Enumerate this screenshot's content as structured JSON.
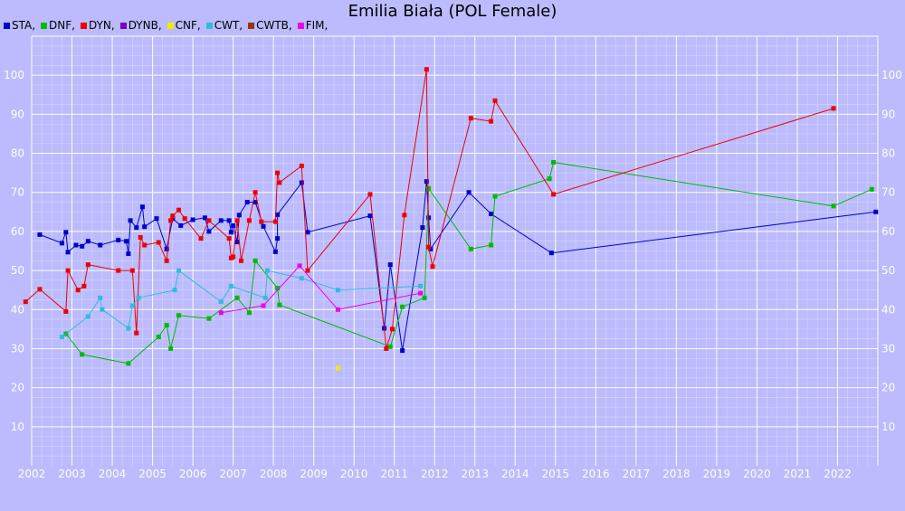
{
  "chart_data": {
    "type": "line",
    "title": "Emilia Biała (POL Female)",
    "xlim": [
      2002,
      2023
    ],
    "ylim": [
      0,
      110
    ],
    "x_ticks": [
      "2002",
      "2003",
      "2004",
      "2005",
      "2006",
      "2007",
      "2008",
      "2009",
      "2010",
      "2011",
      "2012",
      "2013",
      "2014",
      "2015",
      "2016",
      "2017",
      "2018",
      "2019",
      "2020",
      "2021",
      "2022"
    ],
    "y_ticks": [
      "10",
      "20",
      "30",
      "40",
      "50",
      "60",
      "70",
      "80",
      "90",
      "100"
    ],
    "grid": true,
    "legend_position": "top-left",
    "background": "#bbbbfd",
    "series": [
      {
        "name": "STA,",
        "color": "#0000cc",
        "points": [
          [
            2002.2,
            59.2
          ],
          [
            2002.75,
            57
          ],
          [
            2002.85,
            59.8
          ],
          [
            2002.9,
            54.7
          ],
          [
            2003.1,
            56.5
          ],
          [
            2003.25,
            56.2
          ],
          [
            2003.4,
            57.5
          ],
          [
            2003.7,
            56.5
          ],
          [
            2004.15,
            57.8
          ],
          [
            2004.35,
            57.5
          ],
          [
            2004.4,
            54.3
          ],
          [
            2004.45,
            62.8
          ],
          [
            2004.6,
            61
          ],
          [
            2004.75,
            66.3
          ],
          [
            2004.8,
            61.2
          ],
          [
            2005.1,
            63.3
          ],
          [
            2005.35,
            55.5
          ],
          [
            2005.5,
            63.3
          ],
          [
            2005.7,
            61.5
          ],
          [
            2006.0,
            63
          ],
          [
            2006.3,
            63.5
          ],
          [
            2006.4,
            60
          ],
          [
            2006.7,
            62.8
          ],
          [
            2006.9,
            62.8
          ],
          [
            2006.95,
            59.8
          ],
          [
            2007.0,
            61.5
          ],
          [
            2007.1,
            57.3
          ],
          [
            2007.15,
            64.2
          ],
          [
            2007.35,
            67.5
          ],
          [
            2007.55,
            67.5
          ],
          [
            2007.75,
            61.3
          ],
          [
            2008.05,
            54.8
          ],
          [
            2008.1,
            58.2
          ],
          [
            2008.1,
            64.3
          ],
          [
            2008.7,
            72.5
          ],
          [
            2008.85,
            59.8
          ],
          [
            2010.4,
            64
          ],
          [
            2010.75,
            35.2
          ],
          [
            2010.9,
            51.5
          ],
          [
            2011.2,
            29.5
          ],
          [
            2011.7,
            61
          ],
          [
            2011.8,
            72.8
          ],
          [
            2011.85,
            63.5
          ],
          [
            2011.9,
            55.5
          ],
          [
            2012.85,
            70
          ],
          [
            2013.4,
            64.5
          ],
          [
            2014.9,
            54.5
          ],
          [
            2022.95,
            65
          ]
        ]
      },
      {
        "name": "DNF,",
        "color": "#00bb00",
        "points": [
          [
            2002.85,
            33.8
          ],
          [
            2003.25,
            28.5
          ],
          [
            2004.4,
            26.2
          ],
          [
            2005.15,
            33
          ],
          [
            2005.35,
            36
          ],
          [
            2005.45,
            30
          ],
          [
            2005.65,
            38.5
          ],
          [
            2006.4,
            37.7
          ],
          [
            2007.1,
            43
          ],
          [
            2007.4,
            39.2
          ],
          [
            2007.55,
            52.5
          ],
          [
            2008.1,
            45.5
          ],
          [
            2008.15,
            41.2
          ],
          [
            2010.9,
            30.5
          ],
          [
            2011.2,
            40.7
          ],
          [
            2011.75,
            43
          ],
          [
            2011.85,
            71
          ],
          [
            2012.9,
            55.5
          ],
          [
            2013.4,
            56.5
          ],
          [
            2013.5,
            69
          ],
          [
            2014.85,
            73.5
          ],
          [
            2014.95,
            77.7
          ],
          [
            2021.9,
            66.5
          ],
          [
            2022.85,
            70.8
          ]
        ]
      },
      {
        "name": "DYN,",
        "color": "#ee0000",
        "points": [
          [
            2001.85,
            42
          ],
          [
            2002.2,
            45.2
          ],
          [
            2002.85,
            39.5
          ],
          [
            2002.9,
            50
          ],
          [
            2003.15,
            45
          ],
          [
            2003.3,
            46
          ],
          [
            2003.4,
            51.5
          ],
          [
            2004.15,
            50
          ],
          [
            2004.5,
            50
          ],
          [
            2004.6,
            34
          ],
          [
            2004.7,
            58.5
          ],
          [
            2004.8,
            56.5
          ],
          [
            2005.15,
            57.2
          ],
          [
            2005.35,
            52.5
          ],
          [
            2005.45,
            62.8
          ],
          [
            2005.5,
            64
          ],
          [
            2005.65,
            65.5
          ],
          [
            2005.8,
            63.3
          ],
          [
            2006.2,
            58.2
          ],
          [
            2006.4,
            62.8
          ],
          [
            2006.9,
            58.2
          ],
          [
            2006.95,
            53.2
          ],
          [
            2007.0,
            53.5
          ],
          [
            2007.1,
            62.8
          ],
          [
            2007.2,
            52.5
          ],
          [
            2007.4,
            62.8
          ],
          [
            2007.55,
            70
          ],
          [
            2007.7,
            62.5
          ],
          [
            2008.05,
            62.5
          ],
          [
            2008.1,
            75
          ],
          [
            2008.15,
            72.5
          ],
          [
            2008.7,
            76.8
          ],
          [
            2008.85,
            50
          ],
          [
            2010.4,
            69.5
          ],
          [
            2010.8,
            30
          ],
          [
            2010.95,
            35
          ],
          [
            2011.25,
            64.2
          ],
          [
            2011.8,
            101.5
          ],
          [
            2011.85,
            56
          ],
          [
            2011.95,
            51
          ],
          [
            2012.9,
            89
          ],
          [
            2013.4,
            88.2
          ],
          [
            2013.5,
            93.5
          ],
          [
            2014.95,
            69.5
          ],
          [
            2021.9,
            91.5
          ]
        ]
      },
      {
        "name": "DYNB,",
        "color": "#7700cc",
        "points": []
      },
      {
        "name": "CNF,",
        "color": "#eeee00",
        "points": [
          [
            2009.6,
            25
          ]
        ]
      },
      {
        "name": "CWT,",
        "color": "#33bbdd",
        "points": [
          [
            2002.75,
            33
          ],
          [
            2003.4,
            38.2
          ],
          [
            2003.7,
            43
          ],
          [
            2003.75,
            40
          ],
          [
            2004.4,
            35.2
          ],
          [
            2004.5,
            41
          ],
          [
            2004.65,
            43
          ],
          [
            2005.55,
            45
          ],
          [
            2005.65,
            50
          ],
          [
            2006.7,
            42
          ],
          [
            2006.95,
            46
          ],
          [
            2007.8,
            43
          ],
          [
            2007.85,
            50
          ],
          [
            2008.7,
            48
          ],
          [
            2009.6,
            45
          ],
          [
            2011.65,
            46
          ]
        ]
      },
      {
        "name": "CWTB,",
        "color": "#993300",
        "points": []
      },
      {
        "name": "FIM,",
        "color": "#ee00ee",
        "points": [
          [
            2006.7,
            39.2
          ],
          [
            2007.75,
            41
          ],
          [
            2008.65,
            51.2
          ],
          [
            2009.6,
            40
          ],
          [
            2011.65,
            44.2
          ]
        ]
      }
    ]
  }
}
